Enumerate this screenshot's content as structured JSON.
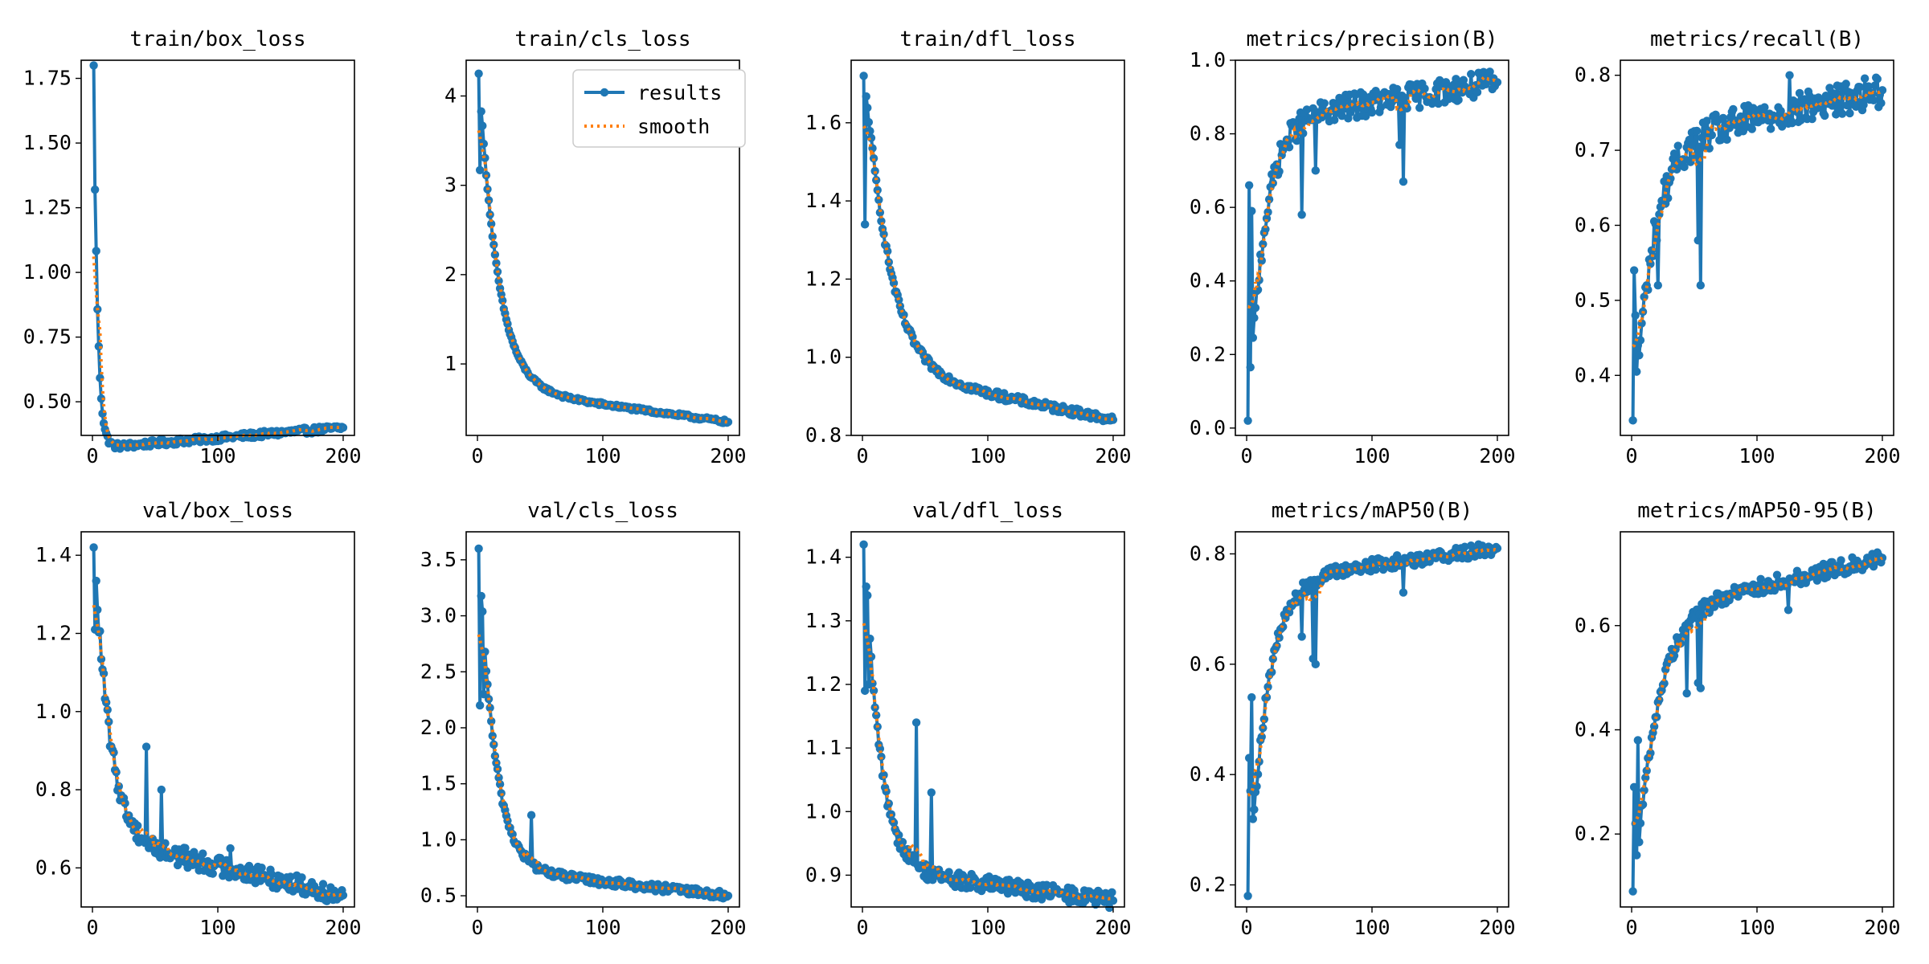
{
  "colors": {
    "results": "#1f77b4",
    "smooth": "#ff7f0e",
    "axis": "#000000"
  },
  "legend": {
    "results_label": "results",
    "smooth_label": "smooth",
    "placement": "upper-right",
    "panel": 1
  },
  "chart_data": [
    {
      "type": "line",
      "title": "train/box_loss",
      "xlim": [
        0,
        200
      ],
      "ylim": [
        0.37,
        1.82
      ],
      "xticks": [
        0,
        100,
        200
      ],
      "xtick_labels": [
        "0",
        "100",
        "200"
      ],
      "yticks": [
        0.5,
        0.75,
        1.0,
        1.25,
        1.5,
        1.75
      ],
      "ytick_labels": [
        "0.50",
        "0.75",
        "1.00",
        "1.25",
        "1.50",
        "1.75"
      ],
      "start": 1.8,
      "end": 0.4,
      "floor": 0.3,
      "drop": 0.04,
      "decay": 3,
      "noise": 0.012,
      "spikes": [
        [
          2,
          1.32
        ]
      ]
    },
    {
      "type": "line",
      "title": "train/cls_loss",
      "xlim": [
        0,
        200
      ],
      "ylim": [
        0.2,
        4.4
      ],
      "xticks": [
        0,
        100,
        200
      ],
      "xtick_labels": [
        "0",
        "100",
        "200"
      ],
      "yticks": [
        1,
        2,
        3,
        4
      ],
      "ytick_labels": [
        "1",
        "2",
        "3",
        "4"
      ],
      "start": 4.25,
      "end": 0.35,
      "floor": 0.35,
      "drop": 0.78,
      "decay": 14,
      "noise": 0.02,
      "spikes": [
        [
          2,
          3.17
        ]
      ]
    },
    {
      "type": "line",
      "title": "train/dfl_loss",
      "xlim": [
        0,
        200
      ],
      "ylim": [
        0.8,
        1.76
      ],
      "xticks": [
        0,
        100,
        200
      ],
      "xtick_labels": [
        "0",
        "100",
        "200"
      ],
      "yticks": [
        0.8,
        1.0,
        1.2,
        1.4,
        1.6
      ],
      "ytick_labels": [
        "0.8",
        "1.0",
        "1.2",
        "1.4",
        "1.6"
      ],
      "start": 1.72,
      "end": 0.84,
      "floor": 0.83,
      "drop": 0.28,
      "decay": 18,
      "noise": 0.01,
      "spikes": [
        [
          2,
          1.34
        ]
      ]
    },
    {
      "type": "line",
      "title": "metrics/precision(B)",
      "xlim": [
        0,
        200
      ],
      "ylim": [
        -0.02,
        1.0
      ],
      "xticks": [
        0,
        100,
        200
      ],
      "xtick_labels": [
        "0",
        "100",
        "200"
      ],
      "yticks": [
        0.0,
        0.2,
        0.4,
        0.6,
        0.8,
        1.0
      ],
      "ytick_labels": [
        "0.0",
        "0.2",
        "0.4",
        "0.6",
        "0.8",
        "1.0"
      ],
      "start": 0.02,
      "end": 0.94,
      "floor": 0.94,
      "drop": 0.22,
      "decay": 12,
      "noise": 0.035,
      "spikes": [
        [
          1,
          0.02
        ],
        [
          2,
          0.66
        ],
        [
          4,
          0.59
        ],
        [
          44,
          0.58
        ],
        [
          55,
          0.7
        ],
        [
          122,
          0.77
        ],
        [
          125,
          0.67
        ]
      ]
    },
    {
      "type": "line",
      "title": "metrics/recall(B)",
      "xlim": [
        0,
        200
      ],
      "ylim": [
        0.32,
        0.82
      ],
      "xticks": [
        0,
        100,
        200
      ],
      "xtick_labels": [
        "0",
        "100",
        "200"
      ],
      "yticks": [
        0.4,
        0.5,
        0.6,
        0.7,
        0.8
      ],
      "ytick_labels": [
        "0.4",
        "0.5",
        "0.6",
        "0.7",
        "0.8"
      ],
      "start": 0.34,
      "end": 0.78,
      "floor": 0.78,
      "drop": 0.15,
      "decay": 14,
      "noise": 0.022,
      "spikes": [
        [
          1,
          0.34
        ],
        [
          2,
          0.54
        ],
        [
          3,
          0.48
        ],
        [
          5,
          0.44
        ],
        [
          21,
          0.52
        ],
        [
          53,
          0.58
        ],
        [
          55,
          0.52
        ],
        [
          126,
          0.8
        ]
      ]
    },
    {
      "type": "line",
      "title": "val/box_loss",
      "xlim": [
        0,
        200
      ],
      "ylim": [
        0.5,
        1.46
      ],
      "xticks": [
        0,
        100,
        200
      ],
      "xtick_labels": [
        "0",
        "100",
        "200"
      ],
      "yticks": [
        0.6,
        0.8,
        1.0,
        1.2,
        1.4
      ],
      "ytick_labels": [
        "0.6",
        "0.8",
        "1.0",
        "1.2",
        "1.4"
      ],
      "start": 1.42,
      "end": 0.53,
      "floor": 0.5,
      "drop": 0.36,
      "decay": 11,
      "noise": 0.025,
      "spikes": [
        [
          2,
          1.21
        ],
        [
          43,
          0.91
        ],
        [
          55,
          0.8
        ],
        [
          110,
          0.65
        ]
      ]
    },
    {
      "type": "line",
      "title": "val/cls_loss",
      "xlim": [
        0,
        200
      ],
      "ylim": [
        0.4,
        3.75
      ],
      "xticks": [
        0,
        100,
        200
      ],
      "xtick_labels": [
        "0",
        "100",
        "200"
      ],
      "yticks": [
        0.5,
        1.0,
        1.5,
        2.0,
        2.5,
        3.0,
        3.5
      ],
      "ytick_labels": [
        "0.5",
        "1.0",
        "1.5",
        "2.0",
        "2.5",
        "3.0",
        "3.5"
      ],
      "start": 3.6,
      "end": 0.5,
      "floor": 0.5,
      "drop": 0.5,
      "decay": 12,
      "noise": 0.035,
      "spikes": [
        [
          2,
          2.2
        ],
        [
          5,
          2.3
        ],
        [
          43,
          1.22
        ]
      ]
    },
    {
      "type": "line",
      "title": "val/dfl_loss",
      "xlim": [
        0,
        200
      ],
      "ylim": [
        0.85,
        1.44
      ],
      "xticks": [
        0,
        100,
        200
      ],
      "xtick_labels": [
        "0",
        "100",
        "200"
      ],
      "yticks": [
        0.9,
        1.0,
        1.1,
        1.2,
        1.3,
        1.4
      ],
      "ytick_labels": [
        "0.9",
        "1.0",
        "1.1",
        "1.2",
        "1.3",
        "1.4"
      ],
      "start": 1.42,
      "end": 0.86,
      "floor": 0.85,
      "drop": 0.12,
      "decay": 12,
      "noise": 0.013,
      "spikes": [
        [
          2,
          1.19
        ],
        [
          4,
          1.34
        ],
        [
          5,
          1.2
        ],
        [
          43,
          1.14
        ],
        [
          55,
          1.03
        ]
      ]
    },
    {
      "type": "line",
      "title": "metrics/mAP50(B)",
      "xlim": [
        0,
        200
      ],
      "ylim": [
        0.16,
        0.84
      ],
      "xticks": [
        0,
        100,
        200
      ],
      "xtick_labels": [
        "0",
        "100",
        "200"
      ],
      "yticks": [
        0.2,
        0.4,
        0.6,
        0.8
      ],
      "ytick_labels": [
        "0.2",
        "0.4",
        "0.6",
        "0.8"
      ],
      "start": 0.18,
      "end": 0.81,
      "floor": 0.81,
      "drop": 0.12,
      "decay": 14,
      "noise": 0.012,
      "spikes": [
        [
          1,
          0.18
        ],
        [
          2,
          0.43
        ],
        [
          3,
          0.37
        ],
        [
          4,
          0.54
        ],
        [
          44,
          0.65
        ],
        [
          53,
          0.61
        ],
        [
          55,
          0.6
        ],
        [
          125,
          0.73
        ]
      ]
    },
    {
      "type": "line",
      "title": "metrics/mAP50-95(B)",
      "xlim": [
        0,
        200
      ],
      "ylim": [
        0.06,
        0.78
      ],
      "xticks": [
        0,
        100,
        200
      ],
      "xtick_labels": [
        "0",
        "100",
        "200"
      ],
      "yticks": [
        0.2,
        0.4,
        0.6
      ],
      "ytick_labels": [
        "0.2",
        "0.4",
        "0.6"
      ],
      "start": 0.09,
      "end": 0.73,
      "floor": 0.74,
      "drop": 0.24,
      "decay": 16,
      "noise": 0.015,
      "spikes": [
        [
          1,
          0.09
        ],
        [
          2,
          0.29
        ],
        [
          3,
          0.22
        ],
        [
          5,
          0.38
        ],
        [
          44,
          0.47
        ],
        [
          53,
          0.49
        ],
        [
          55,
          0.48
        ],
        [
          125,
          0.63
        ]
      ]
    }
  ]
}
